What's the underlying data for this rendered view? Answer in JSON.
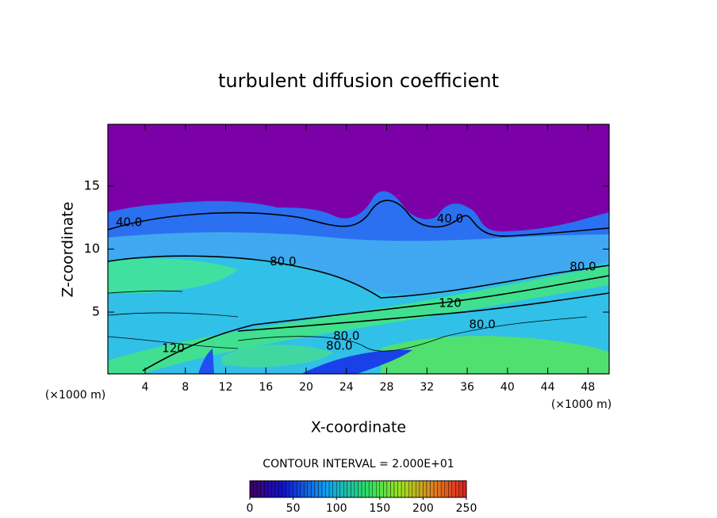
{
  "chart_data": {
    "type": "contour",
    "title": "turbulent diffusion coefficient",
    "x_label": "X-coordinate",
    "y_label": "Z-coordinate",
    "x_unit_left": "(×1000 m)",
    "x_unit_right": "(×1000 m)",
    "xlim": [
      0.3,
      50.1
    ],
    "xticks": [
      4,
      8,
      12,
      16,
      20,
      24,
      28,
      32,
      36,
      40,
      44,
      48
    ],
    "ylim": [
      0.1,
      19.9
    ],
    "yticks": [
      5,
      10,
      15
    ],
    "contour_interval_label": "CONTOUR INTERVAL = 2.000E+01",
    "contour_labels": [
      {
        "value": 40,
        "label": "40.0",
        "x": 2.4,
        "y": 12.1
      },
      {
        "value": 40,
        "label": "40.0",
        "x": 34.3,
        "y": 12.4
      },
      {
        "value": 80,
        "label": "80.0",
        "x": 17.7,
        "y": 9.0
      },
      {
        "value": 80,
        "label": "80.0",
        "x": 47.5,
        "y": 8.6
      },
      {
        "value": 120,
        "label": "120",
        "x": 34.3,
        "y": 5.7
      },
      {
        "value": 80,
        "label": "80.0",
        "x": 37.5,
        "y": 4.0
      },
      {
        "value": 80,
        "label": "80.0",
        "x": 24.0,
        "y": 3.1
      },
      {
        "value": 80,
        "label": "80.0",
        "x": 23.3,
        "y": 2.3
      },
      {
        "value": 120,
        "label": "120",
        "x": 6.8,
        "y": 2.1
      }
    ],
    "colorbar": {
      "lim": [
        0,
        250
      ],
      "ticks": [
        0,
        50,
        100,
        150,
        200,
        250
      ]
    }
  }
}
